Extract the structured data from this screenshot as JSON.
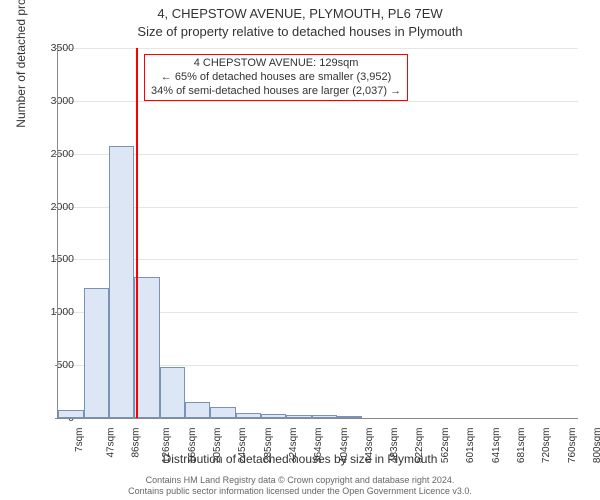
{
  "title_line1": "4, CHEPSTOW AVENUE, PLYMOUTH, PL6 7EW",
  "title_line2": "Size of property relative to detached houses in Plymouth",
  "ylabel": "Number of detached properties",
  "xlabel": "Distribution of detached houses by size in Plymouth",
  "footer_line1": "Contains HM Land Registry data © Crown copyright and database right 2024.",
  "footer_line2": "Contains public sector information licensed under the Open Government Licence v3.0.",
  "annotation": {
    "line1": "4 CHEPSTOW AVENUE: 129sqm",
    "line2": "← 65% of detached houses are smaller (3,952)",
    "line3": "34% of semi-detached houses are larger (2,037) →"
  },
  "marker_value_sqm": 129,
  "chart": {
    "type": "histogram",
    "bar_fill": "#dde6f5",
    "bar_stroke": "#7a91b8",
    "grid_color": "#e5e5e5",
    "axis_color": "#888888",
    "marker_color": "#ff0000",
    "bg_color": "#ffffff",
    "x_min": 7,
    "x_max": 820,
    "ylim": [
      0,
      3500
    ],
    "ytick_step": 500,
    "x_tick_values": [
      7,
      47,
      86,
      126,
      166,
      205,
      245,
      285,
      324,
      364,
      404,
      443,
      483,
      522,
      562,
      601,
      641,
      681,
      720,
      760,
      800
    ],
    "x_tick_suffix": "sqm",
    "bars": [
      {
        "x0": 7,
        "x1": 47,
        "count": 80
      },
      {
        "x0": 47,
        "x1": 86,
        "count": 1230
      },
      {
        "x0": 86,
        "x1": 126,
        "count": 2570
      },
      {
        "x0": 126,
        "x1": 166,
        "count": 1330
      },
      {
        "x0": 166,
        "x1": 205,
        "count": 480
      },
      {
        "x0": 205,
        "x1": 245,
        "count": 150
      },
      {
        "x0": 245,
        "x1": 285,
        "count": 100
      },
      {
        "x0": 285,
        "x1": 324,
        "count": 50
      },
      {
        "x0": 324,
        "x1": 364,
        "count": 40
      },
      {
        "x0": 364,
        "x1": 404,
        "count": 30
      },
      {
        "x0": 404,
        "x1": 443,
        "count": 25
      },
      {
        "x0": 443,
        "x1": 483,
        "count": 15
      }
    ]
  },
  "title_fontsize": 13,
  "label_fontsize": 12,
  "tick_fontsize": 10,
  "footer_fontsize": 9
}
